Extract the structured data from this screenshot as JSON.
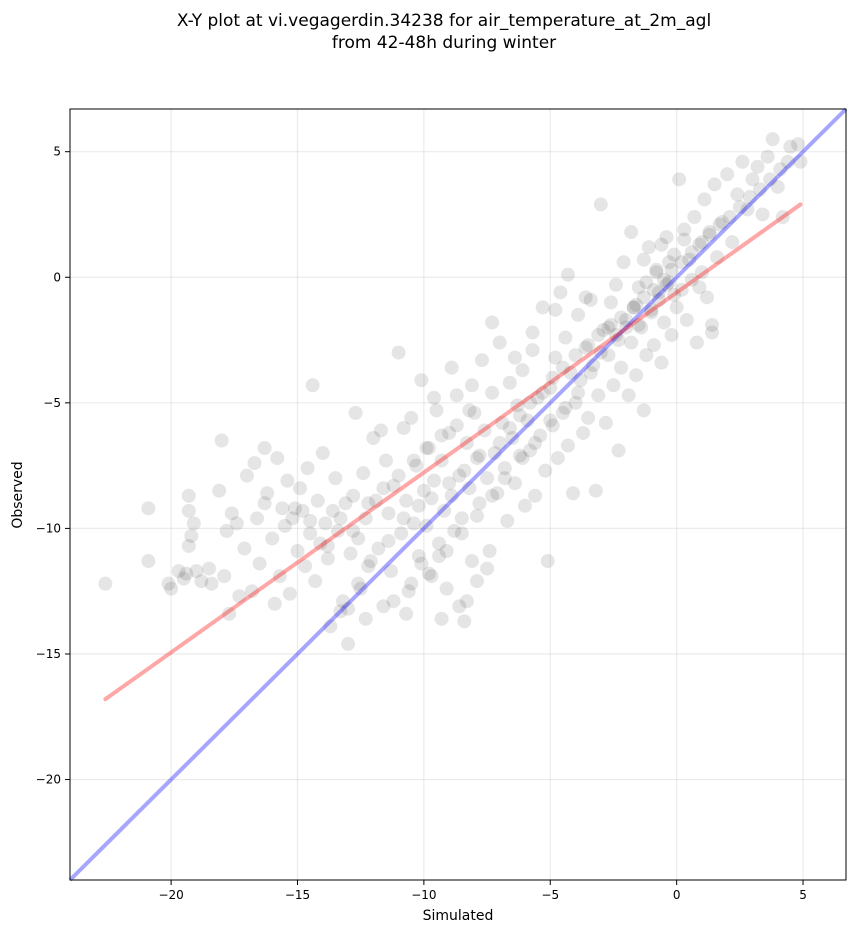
{
  "title": {
    "line1": "X-Y plot at vi.vegagerdin.34238 for air_temperature_at_2m_agl",
    "line2": "from 42-48h during winter"
  },
  "chart_data": {
    "type": "scatter",
    "xlabel": "Simulated",
    "ylabel": "Observed",
    "xlim": [
      -24.0,
      6.7
    ],
    "ylim": [
      -24.0,
      6.7
    ],
    "xticks": [
      -20,
      -15,
      -10,
      -5,
      0,
      5
    ],
    "yticks": [
      -20,
      -15,
      -10,
      -5,
      0,
      5
    ],
    "xtick_labels": [
      "−20",
      "−15",
      "−10",
      "−5",
      "0",
      "5"
    ],
    "ytick_labels": [
      "−20",
      "−15",
      "−10",
      "−5",
      "0",
      "5"
    ],
    "grid": true,
    "point_color": "#000000",
    "point_alpha": 0.1,
    "identity_line": {
      "color": "#0000ff",
      "x": [
        -24.0,
        6.7
      ],
      "y": [
        -24.0,
        6.7
      ]
    },
    "regression_line": {
      "color": "#ff0000",
      "x": [
        -22.6,
        4.9
      ],
      "y": [
        -16.8,
        2.9
      ]
    },
    "points": [
      [
        -22.6,
        -12.2
      ],
      [
        -20.9,
        -9.2
      ],
      [
        -20.9,
        -11.3
      ],
      [
        -20.1,
        -12.2
      ],
      [
        -20.0,
        -12.4
      ],
      [
        -19.7,
        -11.7
      ],
      [
        -19.5,
        -12.0
      ],
      [
        -19.4,
        -11.8
      ],
      [
        -19.3,
        -9.3
      ],
      [
        -19.3,
        -10.7
      ],
      [
        -19.3,
        -8.7
      ],
      [
        -19.2,
        -10.3
      ],
      [
        -19.1,
        -9.8
      ],
      [
        -19.0,
        -11.7
      ],
      [
        -18.8,
        -12.1
      ],
      [
        -18.5,
        -11.6
      ],
      [
        -18.4,
        -12.2
      ],
      [
        -18.1,
        -8.5
      ],
      [
        -18.0,
        -6.5
      ],
      [
        -17.9,
        -11.9
      ],
      [
        -17.8,
        -10.1
      ],
      [
        -17.7,
        -13.4
      ],
      [
        -17.6,
        -9.4
      ],
      [
        -17.4,
        -9.8
      ],
      [
        -17.3,
        -12.7
      ],
      [
        -17.1,
        -10.8
      ],
      [
        -17.0,
        -7.9
      ],
      [
        -16.8,
        -12.5
      ],
      [
        -16.7,
        -7.4
      ],
      [
        -16.6,
        -9.6
      ],
      [
        -16.5,
        -11.4
      ],
      [
        -16.3,
        -6.8
      ],
      [
        -16.2,
        -8.6
      ],
      [
        -16.0,
        -10.4
      ],
      [
        -15.9,
        -13.0
      ],
      [
        -15.8,
        -7.2
      ],
      [
        -15.7,
        -11.9
      ],
      [
        -15.5,
        -9.9
      ],
      [
        -15.4,
        -8.1
      ],
      [
        -15.3,
        -12.6
      ],
      [
        -15.1,
        -9.2
      ],
      [
        -15.0,
        -10.9
      ],
      [
        -14.9,
        -8.4
      ],
      [
        -14.7,
        -11.5
      ],
      [
        -14.6,
        -7.6
      ],
      [
        -14.5,
        -9.7
      ],
      [
        -14.3,
        -12.1
      ],
      [
        -14.2,
        -8.9
      ],
      [
        -14.1,
        -10.6
      ],
      [
        -14.0,
        -7.0
      ],
      [
        -13.8,
        -11.2
      ],
      [
        -13.7,
        -13.9
      ],
      [
        -13.6,
        -9.3
      ],
      [
        -13.5,
        -8.0
      ],
      [
        -13.4,
        -10.1
      ],
      [
        -13.2,
        -12.9
      ],
      [
        -13.1,
        -9.0
      ],
      [
        -13.0,
        -14.6
      ],
      [
        -12.9,
        -11.0
      ],
      [
        -12.8,
        -8.7
      ],
      [
        -12.6,
        -10.4
      ],
      [
        -12.5,
        -12.4
      ],
      [
        -12.4,
        -7.8
      ],
      [
        -12.3,
        -9.6
      ],
      [
        -12.1,
        -11.3
      ],
      [
        -12.0,
        -6.4
      ],
      [
        -11.9,
        -8.9
      ],
      [
        -11.8,
        -10.8
      ],
      [
        -11.6,
        -13.1
      ],
      [
        -11.5,
        -7.3
      ],
      [
        -11.4,
        -9.4
      ],
      [
        -11.3,
        -11.7
      ],
      [
        -11.2,
        -8.3
      ],
      [
        -11.0,
        -3.0
      ],
      [
        -10.9,
        -10.2
      ],
      [
        -10.8,
        -6.0
      ],
      [
        -10.7,
        -8.9
      ],
      [
        -10.6,
        -12.5
      ],
      [
        -10.4,
        -9.8
      ],
      [
        -10.3,
        -7.5
      ],
      [
        -10.2,
        -11.1
      ],
      [
        -10.1,
        -4.1
      ],
      [
        -10.0,
        -8.5
      ],
      [
        -9.9,
        -9.9
      ],
      [
        -9.8,
        -6.8
      ],
      [
        -9.7,
        -11.9
      ],
      [
        -9.6,
        -8.1
      ],
      [
        -9.5,
        -5.3
      ],
      [
        -9.4,
        -10.6
      ],
      [
        -9.3,
        -7.3
      ],
      [
        -9.2,
        -9.3
      ],
      [
        -9.1,
        -12.4
      ],
      [
        -9.0,
        -6.2
      ],
      [
        -8.9,
        -8.7
      ],
      [
        -8.8,
        -10.1
      ],
      [
        -8.7,
        -4.7
      ],
      [
        -8.6,
        -7.9
      ],
      [
        -8.5,
        -9.6
      ],
      [
        -8.4,
        -13.7
      ],
      [
        -8.3,
        -6.6
      ],
      [
        -8.2,
        -8.4
      ],
      [
        -8.1,
        -11.3
      ],
      [
        -8.0,
        -5.4
      ],
      [
        -7.9,
        -7.2
      ],
      [
        -7.8,
        -9.0
      ],
      [
        -7.7,
        -3.3
      ],
      [
        -7.6,
        -6.1
      ],
      [
        -7.5,
        -8.0
      ],
      [
        -7.4,
        -10.9
      ],
      [
        -7.3,
        -4.6
      ],
      [
        -7.2,
        -7.0
      ],
      [
        -7.1,
        -8.6
      ],
      [
        -7.0,
        -2.6
      ],
      [
        -6.9,
        -5.8
      ],
      [
        -6.8,
        -7.6
      ],
      [
        -6.7,
        -9.7
      ],
      [
        -6.6,
        -4.2
      ],
      [
        -6.5,
        -6.4
      ],
      [
        -6.4,
        -8.2
      ],
      [
        -6.3,
        -5.1
      ],
      [
        -6.2,
        -7.1
      ],
      [
        -6.1,
        -3.7
      ],
      [
        -6.0,
        -9.1
      ],
      [
        -5.9,
        -5.7
      ],
      [
        -5.8,
        -6.9
      ],
      [
        -5.7,
        -2.9
      ],
      [
        -5.6,
        -8.7
      ],
      [
        -5.5,
        -4.8
      ],
      [
        -5.4,
        -6.3
      ],
      [
        -5.3,
        -1.2
      ],
      [
        -5.2,
        -7.7
      ],
      [
        -5.1,
        -11.3
      ],
      [
        -5.0,
        -4.4
      ],
      [
        -4.9,
        -5.9
      ],
      [
        -4.8,
        -3.2
      ],
      [
        -4.7,
        -7.2
      ],
      [
        -4.6,
        -0.6
      ],
      [
        -4.5,
        -5.4
      ],
      [
        -4.4,
        -2.4
      ],
      [
        -4.3,
        -6.7
      ],
      [
        -4.2,
        -3.8
      ],
      [
        -4.1,
        -8.6
      ],
      [
        -4.0,
        -5.0
      ],
      [
        -3.9,
        -1.5
      ],
      [
        -3.8,
        -4.1
      ],
      [
        -3.7,
        -6.2
      ],
      [
        -3.6,
        -2.8
      ],
      [
        -3.5,
        -5.6
      ],
      [
        -3.4,
        -0.9
      ],
      [
        -3.3,
        -3.5
      ],
      [
        -3.2,
        -8.5
      ],
      [
        -3.1,
        -4.7
      ],
      [
        -3.0,
        2.9
      ],
      [
        -2.9,
        -2.1
      ],
      [
        -2.8,
        -5.8
      ],
      [
        -2.7,
        -3.1
      ],
      [
        -2.6,
        -1.0
      ],
      [
        -2.5,
        -4.3
      ],
      [
        -2.4,
        -2.3
      ],
      [
        -2.3,
        -6.9
      ],
      [
        -2.2,
        -3.6
      ],
      [
        -2.1,
        0.6
      ],
      [
        -2.0,
        -1.7
      ],
      [
        -1.9,
        -4.7
      ],
      [
        -1.8,
        -2.6
      ],
      [
        -1.7,
        -1.2
      ],
      [
        -1.6,
        -3.9
      ],
      [
        -1.5,
        -0.4
      ],
      [
        -1.4,
        -2.0
      ],
      [
        -1.3,
        -5.3
      ],
      [
        -1.2,
        -3.1
      ],
      [
        -1.1,
        1.2
      ],
      [
        -1.0,
        -1.4
      ],
      [
        -0.9,
        -2.7
      ],
      [
        -0.8,
        0.3
      ],
      [
        -0.7,
        -0.9
      ],
      [
        -0.6,
        -3.4
      ],
      [
        -0.5,
        -1.8
      ],
      [
        -0.4,
        1.6
      ],
      [
        -0.3,
        -0.2
      ],
      [
        -0.2,
        -2.3
      ],
      [
        -0.1,
        0.9
      ],
      [
        0.0,
        -1.2
      ],
      [
        0.1,
        3.9
      ],
      [
        0.2,
        -0.5
      ],
      [
        0.3,
        1.9
      ],
      [
        0.4,
        -1.7
      ],
      [
        0.5,
        0.7
      ],
      [
        0.6,
        -0.1
      ],
      [
        0.7,
        2.4
      ],
      [
        0.8,
        -2.6
      ],
      [
        0.9,
        1.3
      ],
      [
        1.0,
        0.2
      ],
      [
        1.1,
        3.1
      ],
      [
        1.2,
        -0.8
      ],
      [
        1.3,
        1.8
      ],
      [
        1.4,
        -2.2
      ],
      [
        1.5,
        3.7
      ],
      [
        1.6,
        0.8
      ],
      [
        1.8,
        2.2
      ],
      [
        2.0,
        4.1
      ],
      [
        2.2,
        1.4
      ],
      [
        2.4,
        3.3
      ],
      [
        2.6,
        4.6
      ],
      [
        2.8,
        2.7
      ],
      [
        3.0,
        3.9
      ],
      [
        3.2,
        4.4
      ],
      [
        3.4,
        2.5
      ],
      [
        3.6,
        4.8
      ],
      [
        3.8,
        5.5
      ],
      [
        4.0,
        3.6
      ],
      [
        4.2,
        2.4
      ],
      [
        4.5,
        5.2
      ],
      [
        4.8,
        5.3
      ],
      [
        4.9,
        4.6
      ],
      [
        -14.4,
        -4.3
      ],
      [
        -14.8,
        -9.3
      ],
      [
        -13.9,
        -9.8
      ],
      [
        -12.7,
        -5.4
      ],
      [
        -11.7,
        -6.1
      ],
      [
        -10.5,
        -5.6
      ],
      [
        -9.6,
        -4.8
      ],
      [
        -8.9,
        -3.6
      ],
      [
        -8.1,
        -4.3
      ],
      [
        -7.3,
        -1.8
      ],
      [
        -6.4,
        -3.2
      ],
      [
        -5.7,
        -2.2
      ],
      [
        -4.8,
        -1.3
      ],
      [
        -4.3,
        0.1
      ],
      [
        -3.6,
        -0.8
      ],
      [
        -2.4,
        -0.3
      ],
      [
        -1.8,
        1.8
      ],
      [
        -1.3,
        0.7
      ],
      [
        -0.6,
        1.3
      ],
      [
        0.3,
        1.5
      ],
      [
        0.9,
        -0.4
      ],
      [
        1.4,
        -1.9
      ],
      [
        -11.2,
        -12.9
      ],
      [
        -10.1,
        -11.4
      ],
      [
        -9.3,
        -13.6
      ],
      [
        -8.6,
        -13.1
      ],
      [
        -8.3,
        -12.9
      ],
      [
        -7.9,
        -12.1
      ],
      [
        -7.5,
        -11.6
      ],
      [
        -9.4,
        -11.1
      ],
      [
        -10.7,
        -13.4
      ],
      [
        -12.3,
        -13.6
      ],
      [
        -13.3,
        -13.3
      ],
      [
        -13.0,
        -13.2
      ],
      [
        -12.6,
        -12.2
      ],
      [
        -12.2,
        -11.5
      ],
      [
        -11.4,
        -10.5
      ],
      [
        -10.8,
        -9.6
      ],
      [
        -10.2,
        -9.1
      ],
      [
        -9.7,
        -8.8
      ],
      [
        -9.0,
        -8.2
      ],
      [
        -8.4,
        -7.7
      ],
      [
        -7.8,
        -7.1
      ],
      [
        -7.0,
        -6.6
      ],
      [
        -6.6,
        -6.0
      ],
      [
        -6.2,
        -5.5
      ],
      [
        -5.8,
        -5.0
      ],
      [
        -5.3,
        -4.6
      ],
      [
        -4.9,
        -4.0
      ],
      [
        -4.5,
        -3.6
      ],
      [
        -4.0,
        -3.1
      ],
      [
        -3.5,
        -2.7
      ],
      [
        -3.1,
        -2.3
      ],
      [
        -2.6,
        -1.9
      ],
      [
        -2.2,
        -1.6
      ],
      [
        -1.7,
        -1.2
      ],
      [
        -1.3,
        -0.8
      ],
      [
        -0.9,
        -0.5
      ],
      [
        -0.5,
        -0.1
      ],
      [
        -0.2,
        0.3
      ],
      [
        0.2,
        0.6
      ],
      [
        0.6,
        1.0
      ],
      [
        1.0,
        1.4
      ],
      [
        1.3,
        1.7
      ],
      [
        1.7,
        2.1
      ],
      [
        2.1,
        2.4
      ],
      [
        2.5,
        2.8
      ],
      [
        2.9,
        3.2
      ],
      [
        3.3,
        3.5
      ],
      [
        3.7,
        3.9
      ],
      [
        4.1,
        4.3
      ],
      [
        4.4,
        4.6
      ],
      [
        -2.0,
        -2.0
      ],
      [
        -1.5,
        -1.9
      ],
      [
        -1.0,
        -1.3
      ],
      [
        -0.7,
        -0.6
      ],
      [
        -0.4,
        -0.3
      ],
      [
        -0.1,
        -0.7
      ],
      [
        -0.3,
        0.6
      ],
      [
        -0.8,
        0.2
      ],
      [
        -1.2,
        -0.2
      ],
      [
        -1.6,
        -1.1
      ],
      [
        -2.3,
        -2.5
      ],
      [
        -2.7,
        -2.0
      ],
      [
        -3.0,
        -3.0
      ],
      [
        -3.4,
        -3.8
      ],
      [
        -3.9,
        -4.6
      ],
      [
        -4.4,
        -5.2
      ],
      [
        -5.0,
        -5.7
      ],
      [
        -5.6,
        -6.6
      ],
      [
        -6.1,
        -7.2
      ],
      [
        -6.8,
        -8.0
      ],
      [
        -7.3,
        -8.7
      ],
      [
        -7.9,
        -9.5
      ],
      [
        -8.5,
        -10.2
      ],
      [
        -9.1,
        -10.9
      ],
      [
        -9.8,
        -11.8
      ],
      [
        -10.5,
        -12.2
      ],
      [
        -16.3,
        -9.0
      ],
      [
        -15.6,
        -9.2
      ],
      [
        -15.2,
        -9.6
      ],
      [
        -14.5,
        -10.2
      ],
      [
        -13.8,
        -10.7
      ],
      [
        -13.3,
        -9.6
      ],
      [
        -12.8,
        -10.1
      ],
      [
        -12.2,
        -9.0
      ],
      [
        -11.6,
        -8.4
      ],
      [
        -11.0,
        -7.9
      ],
      [
        -10.4,
        -7.3
      ],
      [
        -9.9,
        -6.8
      ],
      [
        -9.3,
        -6.3
      ],
      [
        -8.7,
        -5.9
      ],
      [
        -8.2,
        -5.3
      ]
    ]
  }
}
